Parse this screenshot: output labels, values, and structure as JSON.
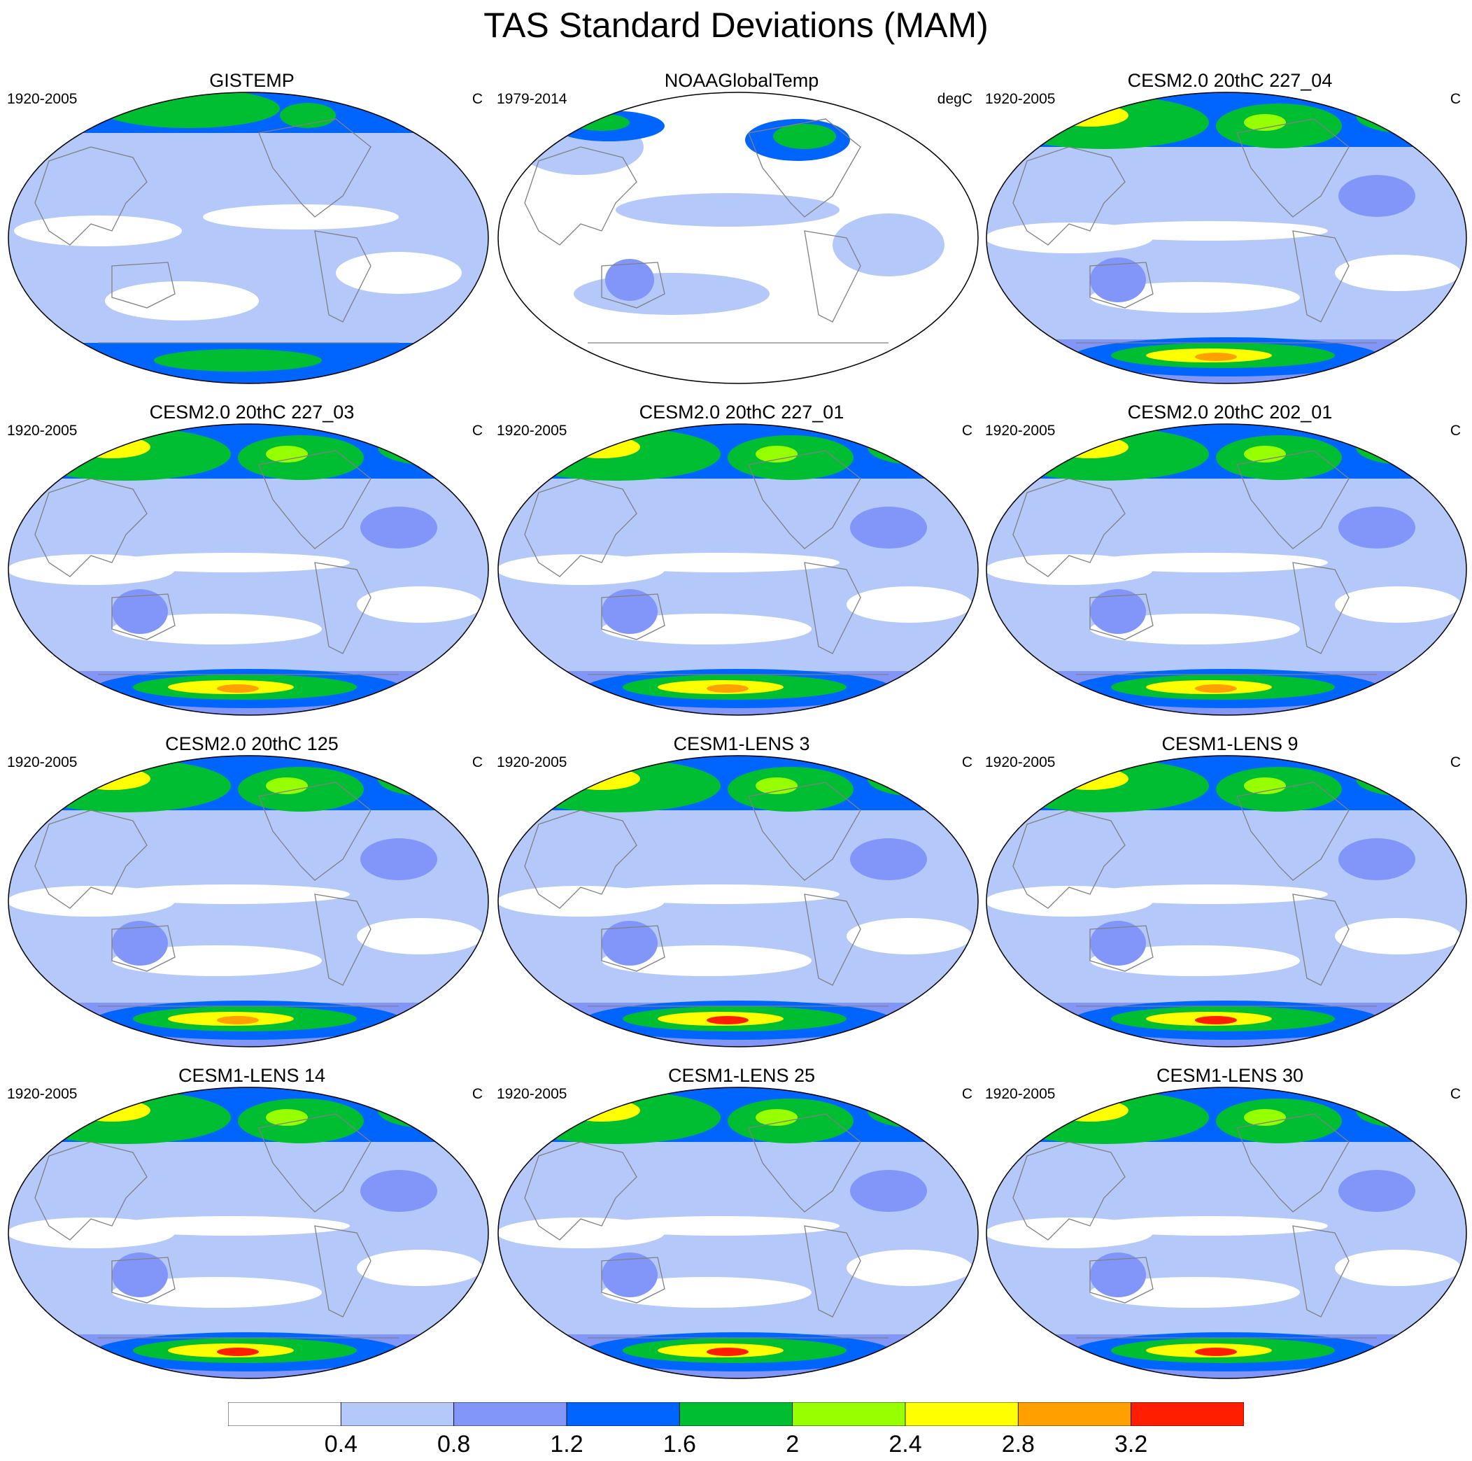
{
  "title": "TAS Standard Deviations (MAM)",
  "colors": {
    "levels": [
      "#ffffff",
      "#b4c8fa",
      "#8296fa",
      "#0064ff",
      "#00be32",
      "#96ff00",
      "#ffff00",
      "#ffa000",
      "#ff1e00"
    ],
    "coast": "#808080",
    "outline": "#000000"
  },
  "colorbar": {
    "labels": [
      "0.4",
      "0.8",
      "1.2",
      "1.6",
      "2",
      "2.4",
      "2.8",
      "3.2"
    ]
  },
  "panels": [
    {
      "title": "GISTEMP",
      "period": "1920-2005",
      "units": "C",
      "style": "obs1"
    },
    {
      "title": "NOAAGlobalTemp",
      "period": "1979-2014",
      "units": "degC",
      "style": "obs2"
    },
    {
      "title": "CESM2.0 20thC 227_04",
      "period": "1920-2005",
      "units": "C",
      "style": "model"
    },
    {
      "title": "CESM2.0 20thC 227_03",
      "period": "1920-2005",
      "units": "C",
      "style": "model"
    },
    {
      "title": "CESM2.0 20thC 227_01",
      "period": "1920-2005",
      "units": "C",
      "style": "model"
    },
    {
      "title": "CESM2.0 20thC 202_01",
      "period": "1920-2005",
      "units": "C",
      "style": "model"
    },
    {
      "title": "CESM2.0 20thC 125",
      "period": "1920-2005",
      "units": "C",
      "style": "model"
    },
    {
      "title": "CESM1-LENS 3",
      "period": "1920-2005",
      "units": "C",
      "style": "model-hot"
    },
    {
      "title": "CESM1-LENS 9",
      "period": "1920-2005",
      "units": "C",
      "style": "model-hot"
    },
    {
      "title": "CESM1-LENS 14",
      "period": "1920-2005",
      "units": "C",
      "style": "model-hot"
    },
    {
      "title": "CESM1-LENS 25",
      "period": "1920-2005",
      "units": "C",
      "style": "model-hot"
    },
    {
      "title": "CESM1-LENS 30",
      "period": "1920-2005",
      "units": "C",
      "style": "model-hot"
    }
  ]
}
